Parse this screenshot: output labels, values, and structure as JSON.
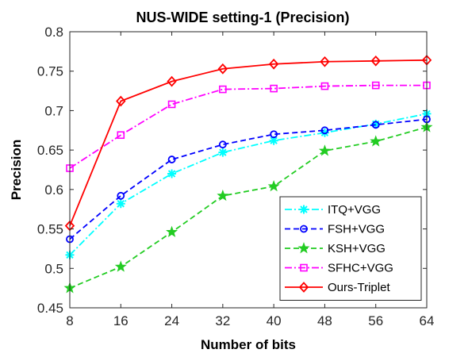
{
  "chart_data": {
    "type": "line",
    "title": "NUS-WIDE setting-1 (Precision)",
    "xlabel": "Number of bits",
    "ylabel": "Precision",
    "x": [
      8,
      16,
      24,
      32,
      40,
      48,
      56,
      64
    ],
    "xlim": [
      8,
      64
    ],
    "ylim": [
      0.45,
      0.8
    ],
    "xticks": [
      "8",
      "16",
      "24",
      "32",
      "40",
      "48",
      "56",
      "64"
    ],
    "yticks": [
      "0.45",
      "0.5",
      "0.55",
      "0.6",
      "0.65",
      "0.7",
      "0.75",
      "0.8"
    ],
    "ytick_values": [
      0.45,
      0.5,
      0.55,
      0.6,
      0.65,
      0.7,
      0.75,
      0.8
    ],
    "grid": false,
    "legend_position": "bottom-right",
    "series": [
      {
        "name": "ITQ+VGG",
        "color": "#00ffff",
        "dash": "dashdot",
        "marker": "asterisk",
        "values": [
          0.517,
          0.582,
          0.62,
          0.647,
          0.662,
          0.672,
          0.683,
          0.696
        ]
      },
      {
        "name": "FSH+VGG",
        "color": "#0000ff",
        "dash": "dashed",
        "marker": "circle",
        "values": [
          0.537,
          0.592,
          0.638,
          0.657,
          0.67,
          0.675,
          0.682,
          0.689
        ]
      },
      {
        "name": "KSH+VGG",
        "color": "#22cc22",
        "dash": "dashed",
        "marker": "star",
        "values": [
          0.475,
          0.502,
          0.546,
          0.592,
          0.604,
          0.649,
          0.661,
          0.679
        ]
      },
      {
        "name": "SFHC+VGG",
        "color": "#ff00ff",
        "dash": "dashdot",
        "marker": "square",
        "values": [
          0.627,
          0.669,
          0.708,
          0.727,
          0.728,
          0.731,
          0.732,
          0.732
        ]
      },
      {
        "name": "Ours-Triplet",
        "color": "#ff0000",
        "dash": "solid",
        "marker": "diamond",
        "values": [
          0.554,
          0.712,
          0.737,
          0.753,
          0.759,
          0.762,
          0.763,
          0.764
        ]
      }
    ]
  }
}
